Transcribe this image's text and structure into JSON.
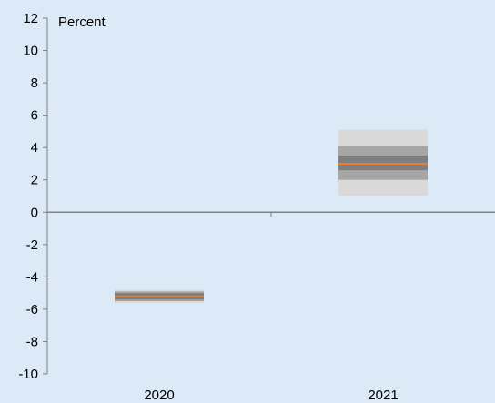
{
  "chart_data": {
    "type": "fan",
    "unit_label": "Percent",
    "categories": [
      "2020",
      "2021"
    ],
    "ylim": [
      -10,
      12
    ],
    "yticks": [
      12,
      10,
      8,
      6,
      4,
      2,
      0,
      -2,
      -4,
      -6,
      -8,
      -10
    ],
    "ytick_labels": [
      "12",
      "10",
      "8",
      "6",
      "4",
      "2",
      "0",
      "-2",
      "-4",
      "-6",
      "-8",
      "-10"
    ],
    "grid": false,
    "bands": [
      {
        "category": "2020",
        "central": -5.2,
        "ranges": [
          {
            "low": -5.6,
            "high": -4.8
          },
          {
            "low": -5.5,
            "high": -4.9
          },
          {
            "low": -5.4,
            "high": -5.0
          }
        ]
      },
      {
        "category": "2021",
        "central": 3.0,
        "ranges": [
          {
            "low": 1.0,
            "high": 5.1
          },
          {
            "low": 2.0,
            "high": 4.1
          },
          {
            "low": 2.6,
            "high": 3.5
          }
        ]
      }
    ],
    "colors": {
      "background": "#dce9f7",
      "outer_band": "#d9d9d9",
      "middle_band": "#a6a6a6",
      "inner_band": "#7f7f7f",
      "central_line": "#ed7d31",
      "axis": "#808080"
    }
  }
}
